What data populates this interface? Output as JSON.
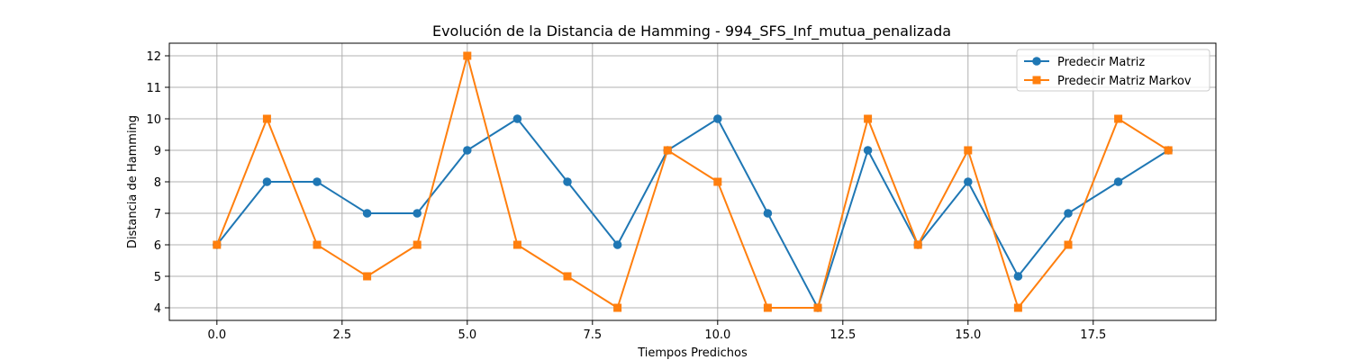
{
  "chart_data": {
    "type": "line",
    "title": "Evolución de la Distancia de Hamming - 994_SFS_Inf_mutua_penalizada",
    "xlabel": "Tiempos Predichos",
    "ylabel": "Distancia de Hamming",
    "x": [
      0,
      1,
      2,
      3,
      4,
      5,
      6,
      7,
      8,
      9,
      10,
      11,
      12,
      13,
      14,
      15,
      16,
      17,
      18,
      19
    ],
    "xlim": [
      -0.95,
      19.95
    ],
    "ylim": [
      3.6,
      12.4
    ],
    "xticks": [
      0.0,
      2.5,
      5.0,
      7.5,
      10.0,
      12.5,
      15.0,
      17.5
    ],
    "xtick_labels": [
      "0.0",
      "2.5",
      "5.0",
      "7.5",
      "10.0",
      "12.5",
      "15.0",
      "17.5"
    ],
    "yticks": [
      4,
      5,
      6,
      7,
      8,
      9,
      10,
      11,
      12
    ],
    "ytick_labels": [
      "4",
      "5",
      "6",
      "7",
      "8",
      "9",
      "10",
      "11",
      "12"
    ],
    "grid": true,
    "legend_position": "top-right",
    "series": [
      {
        "name": "Predecir Matriz",
        "color": "#1f77b4",
        "marker": "circle",
        "values": [
          6,
          8,
          8,
          7,
          7,
          9,
          10,
          8,
          6,
          9,
          10,
          7,
          4,
          9,
          6,
          8,
          5,
          7,
          8,
          9
        ]
      },
      {
        "name": "Predecir Matriz Markov",
        "color": "#ff7f0e",
        "marker": "square",
        "values": [
          6,
          10,
          6,
          5,
          6,
          12,
          6,
          5,
          4,
          9,
          8,
          4,
          4,
          10,
          6,
          9,
          4,
          6,
          10,
          9
        ]
      }
    ]
  }
}
